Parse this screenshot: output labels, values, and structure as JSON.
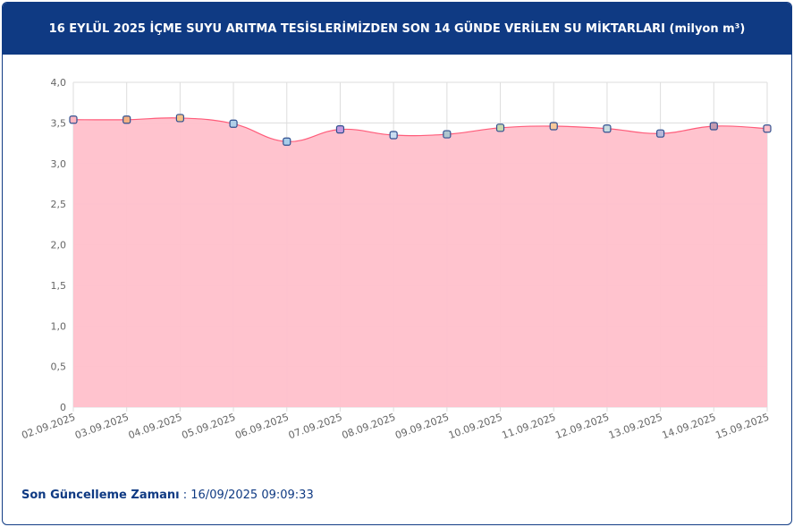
{
  "header": {
    "title": "16 EYLÜL 2025 İÇME SUYU ARITMA TESİSLERİMİZDEN SON 14 GÜNDE VERİLEN SU MİKTARLARI (milyon m³)"
  },
  "footer": {
    "label": "Son Güncelleme Zamanı",
    "value": " : 16/09/2025 09:09:33"
  },
  "chart_data": {
    "type": "area",
    "categories": [
      "02.09.2025",
      "03.09.2025",
      "04.09.2025",
      "05.09.2025",
      "06.09.2025",
      "07.09.2025",
      "08.09.2025",
      "09.09.2025",
      "10.09.2025",
      "11.09.2025",
      "12.09.2025",
      "13.09.2025",
      "14.09.2025",
      "15.09.2025"
    ],
    "values": [
      3.54,
      3.54,
      3.56,
      3.49,
      3.27,
      3.42,
      3.35,
      3.36,
      3.44,
      3.46,
      3.43,
      3.37,
      3.46,
      3.43
    ],
    "ylim": [
      0,
      4
    ],
    "yticks": [
      "0",
      "0,5",
      "1,0",
      "1,5",
      "2,0",
      "2,5",
      "3,0",
      "3,5",
      "4,0"
    ],
    "grid": true,
    "fill_color": "#ffc0cb",
    "line_color": "#ff5c7a",
    "marker_colors": [
      "#ffb6c1",
      "#f4b183",
      "#f4c28a",
      "#b0cfe8",
      "#a9cdea",
      "#c39be0",
      "#c9ddf0",
      "#aec6cf",
      "#c8d8b0",
      "#f7c99b",
      "#c8dce0",
      "#b7b7d8",
      "#c49bb0",
      "#ffc0cb"
    ]
  }
}
